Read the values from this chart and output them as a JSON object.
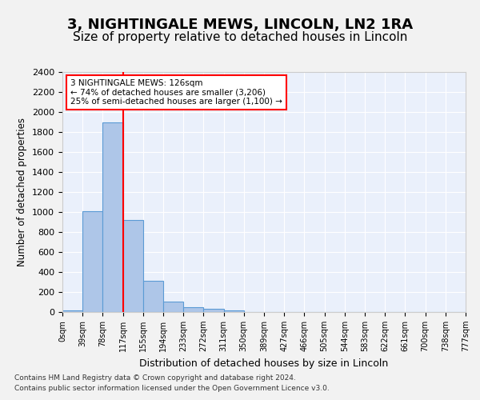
{
  "title1": "3, NIGHTINGALE MEWS, LINCOLN, LN2 1RA",
  "title2": "Size of property relative to detached houses in Lincoln",
  "xlabel": "Distribution of detached houses by size in Lincoln",
  "ylabel": "Number of detached properties",
  "bin_labels": [
    "0sqm",
    "39sqm",
    "78sqm",
    "117sqm",
    "155sqm",
    "194sqm",
    "233sqm",
    "272sqm",
    "311sqm",
    "350sqm",
    "389sqm",
    "427sqm",
    "466sqm",
    "505sqm",
    "544sqm",
    "583sqm",
    "622sqm",
    "661sqm",
    "700sqm",
    "738sqm",
    "777sqm"
  ],
  "bar_values": [
    20,
    1010,
    1900,
    920,
    310,
    105,
    50,
    30,
    15,
    0,
    0,
    0,
    0,
    0,
    0,
    0,
    0,
    0,
    0,
    0
  ],
  "bar_color": "#aec6e8",
  "bar_edge_color": "#5b9bd5",
  "red_line_x": 3.0,
  "annotation_title": "3 NIGHTINGALE MEWS: 126sqm",
  "annotation_line1": "← 74% of detached houses are smaller (3,206)",
  "annotation_line2": "25% of semi-detached houses are larger (1,100) →",
  "ylim": [
    0,
    2400
  ],
  "yticks": [
    0,
    200,
    400,
    600,
    800,
    1000,
    1200,
    1400,
    1600,
    1800,
    2000,
    2200,
    2400
  ],
  "footer1": "Contains HM Land Registry data © Crown copyright and database right 2024.",
  "footer2": "Contains public sector information licensed under the Open Government Licence v3.0.",
  "plot_bg_color": "#eaf0fb",
  "grid_color": "#ffffff",
  "title1_fontsize": 13,
  "title2_fontsize": 11
}
